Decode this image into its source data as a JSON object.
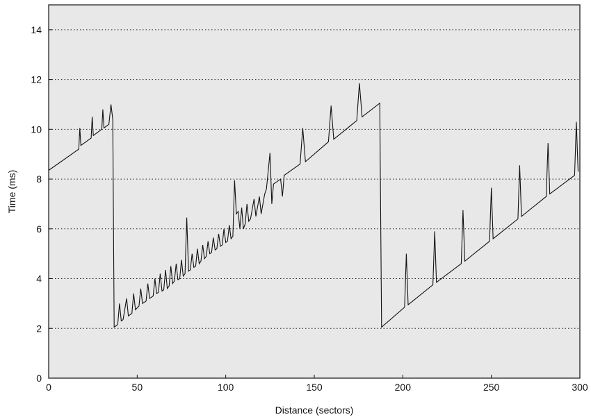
{
  "chart_data": {
    "type": "line",
    "title": "",
    "xlabel": "Distance (sectors)",
    "ylabel": "Time (ms)",
    "xlim": [
      0,
      300
    ],
    "ylim": [
      0,
      15
    ],
    "xticks": [
      0,
      50,
      100,
      150,
      200,
      250,
      300
    ],
    "yticks": [
      0,
      2,
      4,
      6,
      8,
      10,
      12,
      14
    ],
    "grid": "horizontal dotted",
    "background": "#e8e8e8",
    "line_color": "#111111",
    "series": [
      {
        "values": [
          [
            0,
            8.35
          ],
          [
            17,
            9.2
          ],
          [
            17.6,
            10.05
          ],
          [
            18.2,
            9.35
          ],
          [
            24,
            9.65
          ],
          [
            24.6,
            10.5
          ],
          [
            25.2,
            9.75
          ],
          [
            30,
            10.0
          ],
          [
            30.6,
            10.8
          ],
          [
            31.2,
            10.05
          ],
          [
            34,
            10.2
          ],
          [
            35.2,
            11.0
          ],
          [
            36.2,
            10.4
          ],
          [
            37,
            2.05
          ],
          [
            39,
            2.15
          ],
          [
            40,
            3.0
          ],
          [
            41,
            2.3
          ],
          [
            42,
            2.35
          ],
          [
            44,
            3.2
          ],
          [
            45,
            2.5
          ],
          [
            47,
            2.6
          ],
          [
            48,
            3.4
          ],
          [
            49,
            2.75
          ],
          [
            51,
            2.9
          ],
          [
            52,
            3.6
          ],
          [
            53,
            3.0
          ],
          [
            55,
            3.1
          ],
          [
            56,
            3.8
          ],
          [
            57,
            3.2
          ],
          [
            59,
            3.3
          ],
          [
            60,
            4.0
          ],
          [
            61,
            3.4
          ],
          [
            62,
            3.45
          ],
          [
            63,
            4.2
          ],
          [
            64,
            3.5
          ],
          [
            65,
            3.55
          ],
          [
            66,
            4.35
          ],
          [
            67,
            3.6
          ],
          [
            68,
            3.7
          ],
          [
            69,
            4.5
          ],
          [
            70,
            3.8
          ],
          [
            71,
            3.9
          ],
          [
            72,
            4.6
          ],
          [
            73,
            3.95
          ],
          [
            74,
            4.0
          ],
          [
            75,
            4.75
          ],
          [
            76,
            4.1
          ],
          [
            77,
            4.2
          ],
          [
            78,
            6.45
          ],
          [
            79,
            4.3
          ],
          [
            80,
            4.35
          ],
          [
            81,
            5.0
          ],
          [
            82,
            4.45
          ],
          [
            83,
            4.5
          ],
          [
            84,
            5.2
          ],
          [
            85,
            4.6
          ],
          [
            86,
            4.7
          ],
          [
            87,
            5.35
          ],
          [
            88,
            4.8
          ],
          [
            89,
            4.9
          ],
          [
            90,
            5.5
          ],
          [
            91,
            5.0
          ],
          [
            92,
            5.05
          ],
          [
            93,
            5.65
          ],
          [
            94,
            5.15
          ],
          [
            95,
            5.2
          ],
          [
            96,
            5.8
          ],
          [
            97,
            5.3
          ],
          [
            98,
            5.35
          ],
          [
            99,
            6.0
          ],
          [
            100,
            5.45
          ],
          [
            101,
            5.5
          ],
          [
            102,
            6.15
          ],
          [
            103,
            5.6
          ],
          [
            104,
            5.7
          ],
          [
            105,
            7.95
          ],
          [
            106,
            6.6
          ],
          [
            107,
            6.7
          ],
          [
            108,
            6.0
          ],
          [
            109,
            6.85
          ],
          [
            110,
            6.0
          ],
          [
            111,
            6.2
          ],
          [
            112,
            7.0
          ],
          [
            113,
            6.3
          ],
          [
            114,
            6.4
          ],
          [
            116,
            7.2
          ],
          [
            117,
            6.5
          ],
          [
            119,
            7.3
          ],
          [
            120,
            6.6
          ],
          [
            122,
            7.4
          ],
          [
            123,
            7.6
          ],
          [
            125,
            9.05
          ],
          [
            126,
            7.0
          ],
          [
            127,
            7.8
          ],
          [
            129,
            7.9
          ],
          [
            131,
            8.0
          ],
          [
            132,
            7.3
          ],
          [
            133,
            8.15
          ],
          [
            142,
            8.6
          ],
          [
            143.5,
            10.05
          ],
          [
            145,
            8.7
          ],
          [
            158,
            9.5
          ],
          [
            159.5,
            10.95
          ],
          [
            161,
            9.6
          ],
          [
            174,
            10.35
          ],
          [
            175.5,
            11.85
          ],
          [
            177,
            10.5
          ],
          [
            187,
            11.05
          ],
          [
            188,
            2.05
          ],
          [
            201,
            2.85
          ],
          [
            202,
            5.0
          ],
          [
            203,
            2.95
          ],
          [
            217,
            3.75
          ],
          [
            218,
            5.9
          ],
          [
            219,
            3.85
          ],
          [
            233,
            4.6
          ],
          [
            234,
            6.75
          ],
          [
            235,
            4.7
          ],
          [
            249,
            5.5
          ],
          [
            250,
            7.65
          ],
          [
            251,
            5.6
          ],
          [
            265,
            6.4
          ],
          [
            266,
            8.55
          ],
          [
            267,
            6.5
          ],
          [
            281,
            7.3
          ],
          [
            282,
            9.45
          ],
          [
            283,
            7.4
          ],
          [
            297,
            8.15
          ],
          [
            298,
            10.3
          ],
          [
            299,
            8.3
          ]
        ]
      }
    ]
  }
}
